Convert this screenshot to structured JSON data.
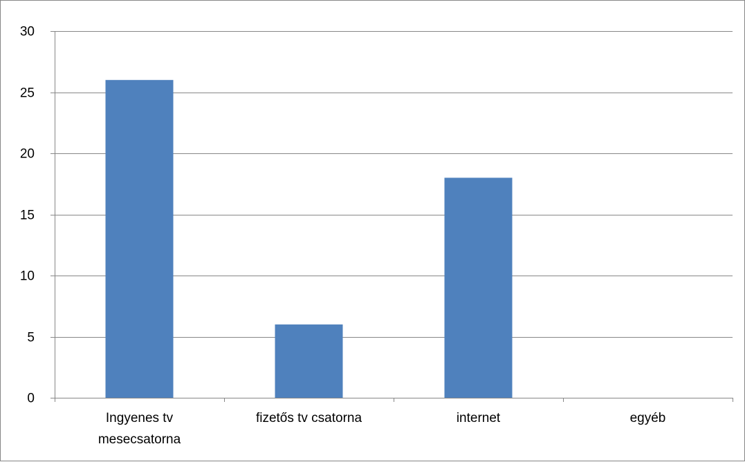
{
  "chart_data": {
    "type": "bar",
    "categories": [
      [
        "Ingyenes tv",
        "mesecsatorna"
      ],
      [
        "fizetős tv csatorna"
      ],
      [
        "internet"
      ],
      [
        "egyéb"
      ]
    ],
    "values": [
      26,
      6,
      18,
      0
    ],
    "yticks": [
      "0",
      "5",
      "10",
      "15",
      "20",
      "25",
      "30"
    ],
    "ylim": [
      0,
      30
    ],
    "grid": true,
    "legend": "none",
    "bar_color": "#4F81BD",
    "grid_color": "#868686"
  }
}
